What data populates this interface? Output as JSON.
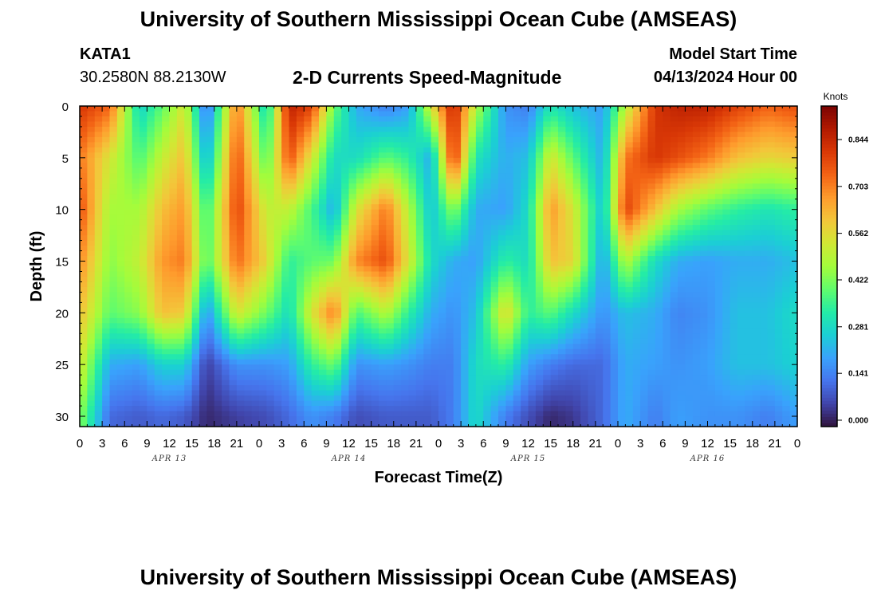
{
  "header": {
    "title": "University of Southern Mississippi Ocean Cube (AMSEAS)",
    "station": "KATA1",
    "coords": "30.2580N  88.2130W",
    "subtitle": "2-D Currents Speed-Magnitude",
    "model_start_label": "Model Start Time",
    "model_start_value": "04/13/2024 Hour 00"
  },
  "footer": {
    "title": "University of Southern Mississippi Ocean Cube (AMSEAS)"
  },
  "colors": {
    "colormap": [
      "#30123b",
      "#4145ab",
      "#4675ed",
      "#39a2fc",
      "#1bcfd4",
      "#24eca6",
      "#61fc6c",
      "#a4fc3b",
      "#d1e834",
      "#f3c63a",
      "#fe9b2d",
      "#f36315",
      "#d93806",
      "#b11901",
      "#7a0402"
    ]
  },
  "chart_data": {
    "type": "heatmap",
    "xlabel": "Forecast Time(Z)",
    "ylabel": "Depth (ft)",
    "x_range_hours": [
      0,
      96
    ],
    "y_range_ft": [
      0,
      31
    ],
    "x_ticks": [
      "0",
      "3",
      "6",
      "9",
      "12",
      "15",
      "18",
      "21",
      "0",
      "3",
      "6",
      "9",
      "12",
      "15",
      "18",
      "21",
      "0",
      "3",
      "6",
      "9",
      "12",
      "15",
      "18",
      "21",
      "0",
      "3",
      "6",
      "9",
      "12",
      "15",
      "18",
      "21",
      "0"
    ],
    "y_ticks": [
      "0",
      "5",
      "10",
      "15",
      "20",
      "25",
      "30"
    ],
    "date_labels": [
      "APR 13",
      "APR 14",
      "APR 15",
      "APR 16"
    ],
    "colorbar": {
      "title": "Knots",
      "range": [
        0,
        0.95
      ],
      "ticks": [
        "0.000",
        "0.141",
        "0.281",
        "0.422",
        "0.562",
        "0.703",
        "0.844"
      ]
    },
    "approx_speed_knots": {
      "columns_hour": [
        0,
        4,
        8,
        11,
        14,
        17,
        21,
        25,
        28,
        31,
        34,
        37,
        41,
        44,
        47,
        50,
        53,
        57,
        60,
        63,
        66,
        70,
        73,
        77,
        80,
        84,
        88,
        92,
        96
      ],
      "rows_depth_ft": [
        0,
        5,
        10,
        15,
        20,
        25,
        30
      ],
      "values": [
        [
          0.82,
          0.72,
          0.78,
          0.7,
          0.62,
          0.55,
          0.45
        ],
        [
          0.75,
          0.55,
          0.48,
          0.45,
          0.4,
          0.22,
          0.12
        ],
        [
          0.28,
          0.38,
          0.48,
          0.52,
          0.45,
          0.2,
          0.1
        ],
        [
          0.4,
          0.52,
          0.62,
          0.68,
          0.62,
          0.28,
          0.12
        ],
        [
          0.55,
          0.62,
          0.68,
          0.72,
          0.6,
          0.28,
          0.1
        ],
        [
          0.12,
          0.22,
          0.35,
          0.38,
          0.18,
          0.06,
          0.03
        ],
        [
          0.72,
          0.78,
          0.8,
          0.74,
          0.55,
          0.18,
          0.06
        ],
        [
          0.28,
          0.38,
          0.52,
          0.58,
          0.42,
          0.18,
          0.08
        ],
        [
          0.86,
          0.78,
          0.52,
          0.35,
          0.3,
          0.2,
          0.12
        ],
        [
          0.8,
          0.55,
          0.38,
          0.4,
          0.55,
          0.35,
          0.18
        ],
        [
          0.42,
          0.3,
          0.22,
          0.42,
          0.72,
          0.42,
          0.15
        ],
        [
          0.22,
          0.3,
          0.55,
          0.7,
          0.38,
          0.18,
          0.08
        ],
        [
          0.15,
          0.4,
          0.72,
          0.78,
          0.5,
          0.2,
          0.1
        ],
        [
          0.2,
          0.35,
          0.5,
          0.55,
          0.35,
          0.18,
          0.1
        ],
        [
          0.55,
          0.22,
          0.25,
          0.3,
          0.22,
          0.15,
          0.1
        ],
        [
          0.86,
          0.82,
          0.45,
          0.22,
          0.18,
          0.15,
          0.15
        ],
        [
          0.5,
          0.32,
          0.22,
          0.2,
          0.25,
          0.3,
          0.3
        ],
        [
          0.18,
          0.22,
          0.2,
          0.35,
          0.58,
          0.35,
          0.15
        ],
        [
          0.15,
          0.25,
          0.3,
          0.3,
          0.35,
          0.2,
          0.08
        ],
        [
          0.32,
          0.55,
          0.68,
          0.62,
          0.4,
          0.15,
          0.03
        ],
        [
          0.25,
          0.4,
          0.55,
          0.58,
          0.3,
          0.12,
          0.05
        ],
        [
          0.2,
          0.22,
          0.25,
          0.2,
          0.18,
          0.12,
          0.12
        ],
        [
          0.5,
          0.72,
          0.8,
          0.5,
          0.25,
          0.22,
          0.22
        ],
        [
          0.82,
          0.82,
          0.62,
          0.3,
          0.22,
          0.2,
          0.15
        ],
        [
          0.86,
          0.78,
          0.48,
          0.22,
          0.16,
          0.18,
          0.2
        ],
        [
          0.86,
          0.72,
          0.4,
          0.2,
          0.18,
          0.2,
          0.18
        ],
        [
          0.8,
          0.62,
          0.35,
          0.22,
          0.25,
          0.25,
          0.18
        ],
        [
          0.75,
          0.58,
          0.32,
          0.22,
          0.25,
          0.25,
          0.15
        ],
        [
          0.78,
          0.6,
          0.35,
          0.25,
          0.3,
          0.28,
          0.2
        ]
      ]
    }
  }
}
